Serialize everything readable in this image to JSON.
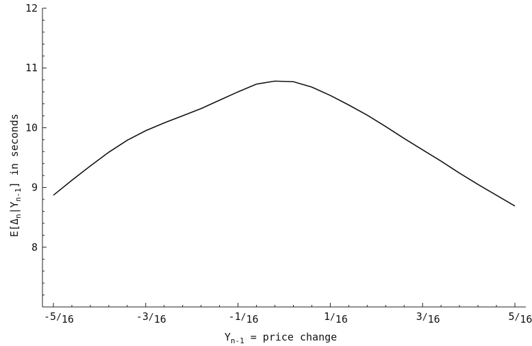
{
  "chart_data": {
    "type": "line",
    "title": "",
    "xlabel": {
      "text": "Y",
      "sub": "n-1",
      "rest": " = price change"
    },
    "ylabel": {
      "p1": "E[Δ",
      "s1": "n",
      "p2": "|Y",
      "s2": "n-1",
      "p3": "] in seconds"
    },
    "xlim": [
      -0.3125,
      0.3125
    ],
    "ylim": [
      7,
      12
    ],
    "x_ticks": [
      {
        "value": -0.3125,
        "label": {
          "sign": "-",
          "num": "5",
          "den": "16"
        }
      },
      {
        "value": -0.1875,
        "label": {
          "sign": "-",
          "num": "3",
          "den": "16"
        }
      },
      {
        "value": -0.0625,
        "label": {
          "sign": "-",
          "num": "1",
          "den": "16"
        }
      },
      {
        "value": 0.0625,
        "label": {
          "sign": "",
          "num": "1",
          "den": "16"
        }
      },
      {
        "value": 0.1875,
        "label": {
          "sign": "",
          "num": "3",
          "den": "16"
        }
      },
      {
        "value": 0.3125,
        "label": {
          "sign": "",
          "num": "5",
          "den": "16"
        }
      }
    ],
    "y_ticks": [
      {
        "value": 8,
        "label": "8"
      },
      {
        "value": 9,
        "label": "9"
      },
      {
        "value": 10,
        "label": "10"
      },
      {
        "value": 11,
        "label": "11"
      },
      {
        "value": 12,
        "label": "12"
      }
    ],
    "grid": false,
    "series": [
      {
        "x": [
          -0.3125,
          -0.2875,
          -0.2625,
          -0.2375,
          -0.2125,
          -0.1875,
          -0.1625,
          -0.1375,
          -0.1125,
          -0.0875,
          -0.0625,
          -0.0375,
          -0.0125,
          0.0125,
          0.0375,
          0.0625,
          0.0875,
          0.1125,
          0.1375,
          0.1625,
          0.1875,
          0.2125,
          0.2375,
          0.2625,
          0.2875,
          0.3125
        ],
        "y": [
          8.87,
          9.12,
          9.36,
          9.59,
          9.79,
          9.95,
          10.08,
          10.2,
          10.32,
          10.46,
          10.6,
          10.73,
          10.78,
          10.77,
          10.68,
          10.54,
          10.38,
          10.21,
          10.02,
          9.82,
          9.63,
          9.44,
          9.24,
          9.05,
          8.87,
          8.69
        ]
      }
    ]
  }
}
